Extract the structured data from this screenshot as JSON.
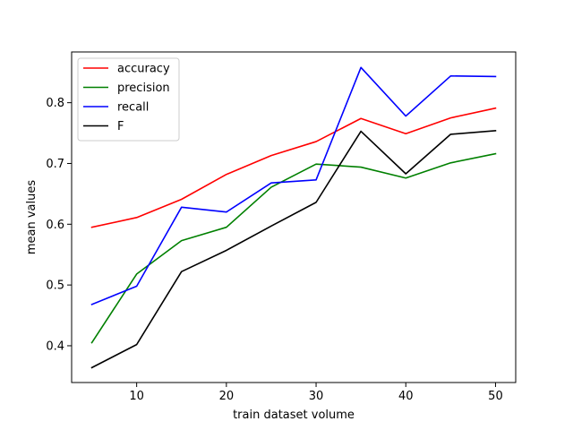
{
  "chart_data": {
    "type": "line",
    "title": "",
    "xlabel": "train dataset volume",
    "ylabel": "mean values",
    "x": [
      5,
      10,
      15,
      20,
      25,
      30,
      35,
      40,
      45,
      50
    ],
    "xlim": [
      2.75,
      52.25
    ],
    "ylim": [
      0.3395,
      0.8835
    ],
    "xticks": [
      10,
      20,
      30,
      40,
      50
    ],
    "yticks": [
      0.4,
      0.5,
      0.6,
      0.7,
      0.8
    ],
    "xtick_labels": [
      "10",
      "20",
      "30",
      "40",
      "50"
    ],
    "ytick_labels": [
      "0.4",
      "0.5",
      "0.6",
      "0.7",
      "0.8"
    ],
    "grid": false,
    "legend_position": "top-left",
    "series": [
      {
        "name": "accuracy",
        "color": "#ff0000",
        "values": [
          0.595,
          0.611,
          0.641,
          0.682,
          0.713,
          0.736,
          0.774,
          0.749,
          0.775,
          0.791
        ]
      },
      {
        "name": "precision",
        "color": "#008000",
        "values": [
          0.405,
          0.518,
          0.573,
          0.595,
          0.661,
          0.699,
          0.694,
          0.676,
          0.701,
          0.716
        ]
      },
      {
        "name": "recall",
        "color": "#0000ff",
        "values": [
          0.468,
          0.498,
          0.628,
          0.62,
          0.668,
          0.673,
          0.858,
          0.778,
          0.844,
          0.843
        ]
      },
      {
        "name": "F",
        "color": "#000000",
        "values": [
          0.364,
          0.402,
          0.522,
          0.557,
          0.597,
          0.636,
          0.753,
          0.683,
          0.748,
          0.754
        ]
      }
    ]
  }
}
